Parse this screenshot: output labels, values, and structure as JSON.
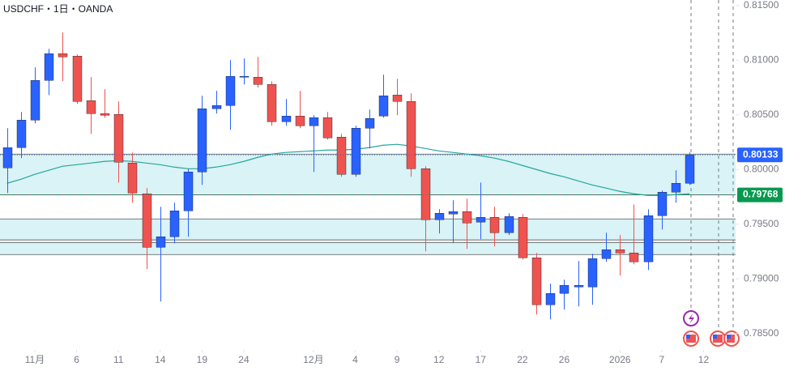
{
  "chart_data": {
    "type": "candlestick",
    "title": "USDCHF・1日・OANDA",
    "x": [
      0,
      1,
      2,
      3,
      4,
      5,
      6,
      7,
      8,
      9,
      10,
      11,
      12,
      13,
      14,
      15,
      16,
      17,
      18,
      19,
      20,
      21,
      22,
      23,
      24,
      25,
      26,
      27,
      28,
      29,
      30,
      31,
      32,
      33,
      34,
      35,
      36,
      37,
      38,
      39,
      40,
      41,
      42,
      43,
      44,
      45,
      46,
      47,
      48,
      49
    ],
    "open": [
      0.80015,
      0.802,
      0.80452,
      0.80815,
      0.81059,
      0.81037,
      0.8063,
      0.80511,
      0.80504,
      0.80059,
      0.79778,
      0.79289,
      0.79385,
      0.79622,
      0.79978,
      0.80556,
      0.80585,
      0.80844,
      0.80844,
      0.80778,
      0.80437,
      0.80489,
      0.804,
      0.80474,
      0.80296,
      0.79956,
      0.80378,
      0.80489,
      0.80681,
      0.80622,
      0.80007,
      0.79541,
      0.79593,
      0.79615,
      0.79519,
      0.79563,
      0.79422,
      0.79563,
      0.79193,
      0.78763,
      0.78867,
      0.78926,
      0.78926,
      0.79185,
      0.79267,
      0.79237,
      0.79156,
      0.79578,
      0.79793,
      0.79874
    ],
    "high": [
      0.80378,
      0.80526,
      0.80933,
      0.81104,
      0.81252,
      0.81052,
      0.80844,
      0.80733,
      0.80622,
      0.80156,
      0.7983,
      0.79659,
      0.79696,
      0.80007,
      0.80674,
      0.80719,
      0.81,
      0.81015,
      0.8103,
      0.80807,
      0.80644,
      0.80719,
      0.80496,
      0.80526,
      0.80326,
      0.804,
      0.80548,
      0.80867,
      0.8083,
      0.80696,
      0.8003,
      0.79637,
      0.79719,
      0.79733,
      0.79881,
      0.79659,
      0.796,
      0.79593,
      0.79237,
      0.78956,
      0.78993,
      0.79163,
      0.7923,
      0.79422,
      0.794,
      0.79681,
      0.79637,
      0.79807,
      0.79993,
      0.80156
    ],
    "low": [
      0.79785,
      0.80104,
      0.80422,
      0.80681,
      0.80807,
      0.806,
      0.80326,
      0.80474,
      0.79881,
      0.79696,
      0.79089,
      0.78793,
      0.79326,
      0.79385,
      0.79859,
      0.80511,
      0.80363,
      0.80778,
      0.80748,
      0.804,
      0.804,
      0.80378,
      0.79978,
      0.80274,
      0.79933,
      0.79933,
      0.80193,
      0.80474,
      0.80496,
      0.79933,
      0.79252,
      0.79415,
      0.79326,
      0.79274,
      0.79363,
      0.79296,
      0.794,
      0.79178,
      0.78674,
      0.7863,
      0.78719,
      0.78748,
      0.78763,
      0.79156,
      0.7903,
      0.79133,
      0.79081,
      0.79452,
      0.79696,
      0.79859
    ],
    "close": [
      0.802,
      0.80452,
      0.80815,
      0.81059,
      0.8103,
      0.80622,
      0.80511,
      0.80496,
      0.80067,
      0.79785,
      0.79289,
      0.79385,
      0.79622,
      0.79978,
      0.80556,
      0.80585,
      0.80852,
      0.80852,
      0.80778,
      0.80437,
      0.80489,
      0.804,
      0.80474,
      0.80289,
      0.79956,
      0.80378,
      0.80467,
      0.80674,
      0.80622,
      0.80007,
      0.79541,
      0.796,
      0.79615,
      0.79511,
      0.79563,
      0.79422,
      0.7957,
      0.79193,
      0.78763,
      0.78867,
      0.78941,
      0.78941,
      0.79185,
      0.79267,
      0.79237,
      0.79156,
      0.79578,
      0.79793,
      0.79874,
      0.80133
    ],
    "up_color": "#2962ff",
    "down_color": "#ef5350",
    "ma": {
      "color": "#26a69a",
      "values": [
        0.79874,
        0.79911,
        0.79956,
        0.79993,
        0.8003,
        0.80044,
        0.80059,
        0.80074,
        0.80081,
        0.80074,
        0.80059,
        0.80044,
        0.80022,
        0.80007,
        0.80007,
        0.80022,
        0.80044,
        0.80074,
        0.80111,
        0.80141,
        0.80156,
        0.80163,
        0.8017,
        0.80178,
        0.80178,
        0.80185,
        0.802,
        0.80222,
        0.8023,
        0.80215,
        0.80193,
        0.8017,
        0.80156,
        0.80141,
        0.80126,
        0.80104,
        0.80074,
        0.80037,
        0.8,
        0.79963,
        0.79933,
        0.79896,
        0.79859,
        0.7983,
        0.798,
        0.79778,
        0.79763,
        0.79763,
        0.7977,
        0.79778
      ]
    },
    "zones": [
      [
        0.79768,
        0.80141
      ],
      [
        0.79356,
        0.79548
      ],
      [
        0.79222,
        0.79333
      ]
    ],
    "zone_color": "#d9f3f6",
    "price_lines": [
      {
        "value": 0.80133,
        "color": "#2962ff"
      },
      {
        "value": 0.79768,
        "color": "#089950"
      }
    ],
    "xlim": [
      -0.5,
      52.3
    ],
    "xticks": [
      {
        "value": 2,
        "label": "11月"
      },
      5,
      8,
      11,
      14,
      17,
      {
        "value": 22,
        "label": "12月"
      },
      25,
      28,
      31,
      34,
      37,
      40,
      44,
      47,
      50
    ],
    "xtick_labels_printed": [
      "11月",
      "6",
      "11",
      "14",
      "19",
      "24",
      "12月",
      "4",
      "9",
      "12",
      "17",
      "22",
      "26",
      "2026",
      "7",
      "12"
    ],
    "ylim": [
      0.7835,
      0.8155
    ],
    "yticks": [
      {
        "value": 0.785,
        "label": "0.78500"
      },
      {
        "value": 0.79,
        "label": "0.79000"
      },
      {
        "value": 0.795,
        "label": "0.79500"
      },
      {
        "value": 0.8,
        "label": "0.80000"
      },
      {
        "value": 0.805,
        "label": "0.80500"
      },
      {
        "value": 0.81,
        "label": "0.81000"
      },
      {
        "value": 0.815,
        "label": "0.81500"
      }
    ]
  }
}
